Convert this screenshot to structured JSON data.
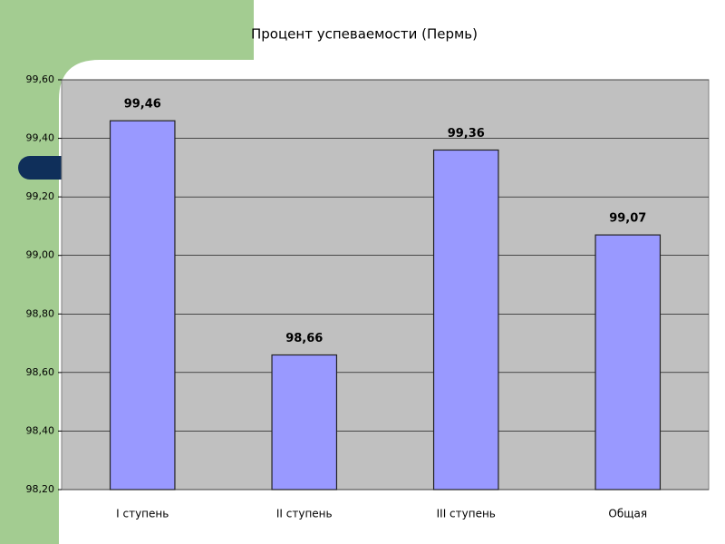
{
  "chart_data": {
    "type": "bar",
    "title": "Процент успеваемости (Пермь)",
    "categories": [
      "I ступень",
      "II ступень",
      "III ступень",
      "Общая"
    ],
    "values": [
      99.46,
      98.66,
      99.36,
      99.07
    ],
    "value_labels": [
      "99,46",
      "98,66",
      "99,36",
      "99,07"
    ],
    "color": "#9999ff",
    "ylim": [
      98.2,
      99.6
    ],
    "yticks": [
      {
        "value": 98.2,
        "label": "98,20"
      },
      {
        "value": 98.4,
        "label": "98,40"
      },
      {
        "value": 98.6,
        "label": "98,60"
      },
      {
        "value": 98.8,
        "label": "98,80"
      },
      {
        "value": 99.0,
        "label": "99,00"
      },
      {
        "value": 99.2,
        "label": "99,20"
      },
      {
        "value": 99.4,
        "label": "99,40"
      },
      {
        "value": 99.6,
        "label": "99,60"
      }
    ],
    "grid": true
  }
}
